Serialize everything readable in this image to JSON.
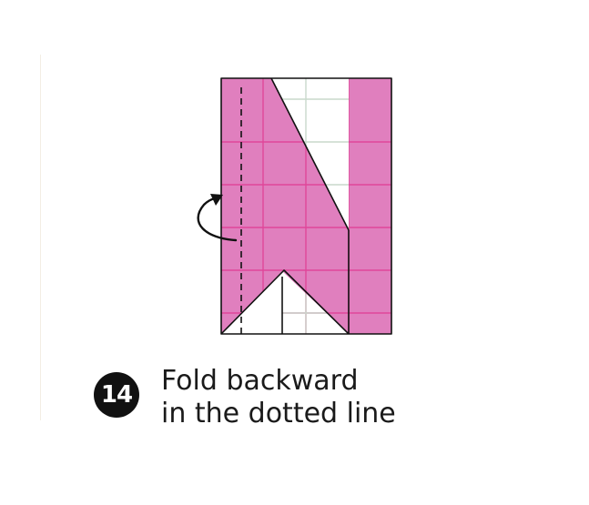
{
  "diagram": {
    "step_number": "14",
    "instruction_line1": "Fold backward",
    "instruction_line2": "in the dotted line",
    "icons": [
      "fold-arrow-icon"
    ],
    "colors": {
      "paper_pink": "#e07fbe",
      "grid_pink": "#e0479a",
      "grid_white": "#c9d9cc",
      "outline": "#111111",
      "badge": "#111111"
    }
  }
}
